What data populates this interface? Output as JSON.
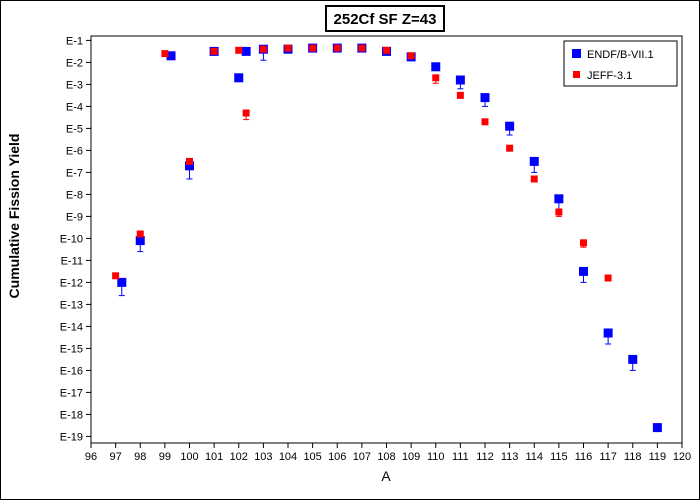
{
  "chart_data": {
    "type": "scatter",
    "title": "252Cf SF Z=43",
    "xlabel": "A",
    "ylabel": "Cumulative Fission Yield",
    "x_ticks": [
      96,
      97,
      98,
      99,
      100,
      101,
      102,
      103,
      104,
      105,
      106,
      107,
      108,
      109,
      110,
      111,
      112,
      113,
      114,
      115,
      116,
      117,
      118,
      119,
      120
    ],
    "xlim": [
      96,
      120
    ],
    "y_scale": "log",
    "ylim_exponent": [
      -19.3,
      -0.8
    ],
    "y_tick_labels": [
      "E-1",
      "E-2",
      "E-3",
      "E-4",
      "E-5",
      "E-6",
      "E-7",
      "E-8",
      "E-9",
      "E-10",
      "E-11",
      "E-12",
      "E-13",
      "E-14",
      "E-15",
      "E-16",
      "E-17",
      "E-18",
      "E-19"
    ],
    "y_tick_exponents": [
      -1,
      -2,
      -3,
      -4,
      -5,
      -6,
      -7,
      -8,
      -9,
      -10,
      -11,
      -12,
      -13,
      -14,
      -15,
      -16,
      -17,
      -18,
      -19
    ],
    "grid": false,
    "legend_position": "top-right",
    "series": [
      {
        "name": "ENDF/B-VII.1",
        "color": "#0000ff",
        "marker": "square-large",
        "x": [
          97.25,
          98,
          99.25,
          100,
          101,
          102,
          102.3,
          103,
          104,
          105,
          106,
          107,
          108,
          109,
          110,
          111,
          112,
          113,
          114,
          115,
          116,
          117,
          118,
          119
        ],
        "log_y": [
          -12.0,
          -10.1,
          -1.7,
          -6.7,
          -1.5,
          -2.7,
          -1.5,
          -1.4,
          -1.4,
          -1.35,
          -1.35,
          -1.35,
          -1.5,
          -1.75,
          -2.2,
          -2.8,
          -3.6,
          -4.9,
          -6.5,
          -8.2,
          -11.5,
          -14.3,
          -15.5,
          -18.6
        ],
        "err_down": [
          0.6,
          0.5,
          0,
          0.6,
          0,
          0,
          0,
          0.5,
          0,
          0,
          0,
          0,
          0,
          0,
          0,
          0.4,
          0.4,
          0.4,
          0.5,
          0.5,
          0.5,
          0.5,
          0.5,
          0
        ]
      },
      {
        "name": "JEFF-3.1",
        "color": "#ff0000",
        "marker": "square-small",
        "x": [
          97,
          98,
          99,
          100,
          101,
          102,
          102.3,
          103,
          104,
          105,
          106,
          107,
          108,
          109,
          110,
          111,
          112,
          113,
          114,
          115,
          116,
          117
        ],
        "log_y": [
          -11.7,
          -9.8,
          -1.6,
          -6.5,
          -1.5,
          -1.45,
          -4.3,
          -1.4,
          -1.35,
          -1.35,
          -1.35,
          -1.35,
          -1.45,
          -1.7,
          -2.7,
          -3.5,
          -4.7,
          -5.9,
          -7.3,
          -8.8,
          -10.2,
          -11.8
        ],
        "err_down": [
          0,
          0,
          0,
          0,
          0,
          0,
          0.3,
          0,
          0,
          0,
          0,
          0,
          0,
          0,
          0.25,
          0,
          0,
          0,
          0,
          0.2,
          0.2,
          0
        ]
      }
    ]
  }
}
